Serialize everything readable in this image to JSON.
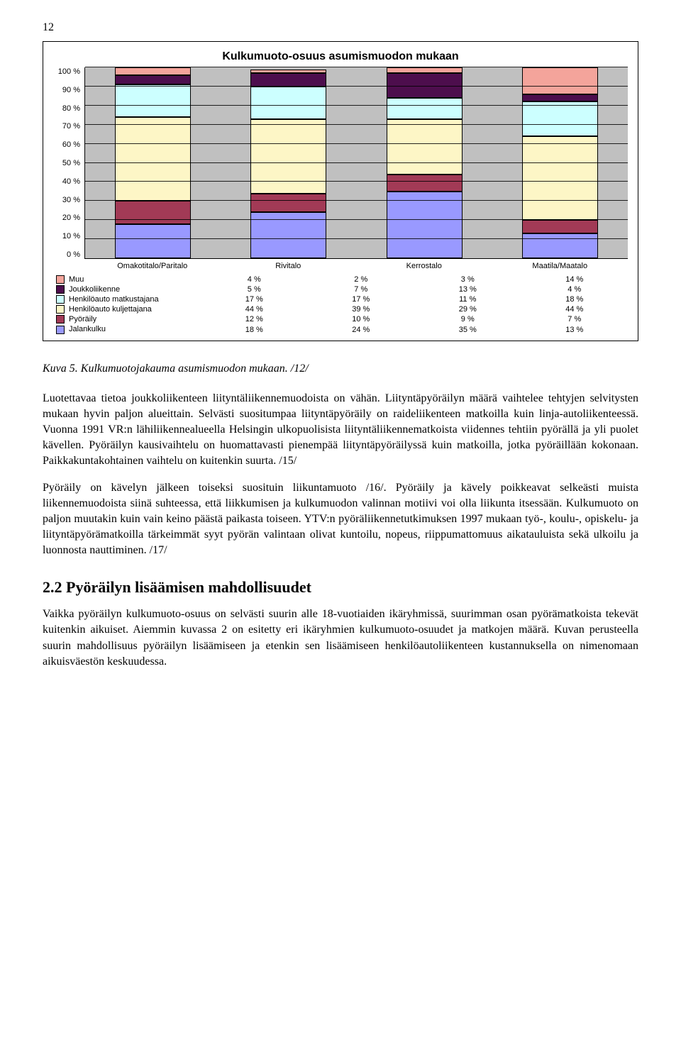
{
  "page_number": "12",
  "chart": {
    "type": "stacked-bar",
    "title": "Kulkumuoto-osuus asumismuodon mukaan",
    "background_color": "#c0c0c0",
    "grid_color": "#000000",
    "ylabel_suffix": " %",
    "yticks": [
      "100 %",
      "90 %",
      "80 %",
      "70 %",
      "60 %",
      "50 %",
      "40 %",
      "30 %",
      "20 %",
      "10 %",
      "0 %"
    ],
    "categories": [
      "Omakotitalo/Paritalo",
      "Rivitalo",
      "Kerrostalo",
      "Maatila/Maatalo"
    ],
    "series": [
      {
        "key": "Muu",
        "label": "Muu",
        "color": "#f4a49b",
        "values": [
          "4 %",
          "2 %",
          "3 %",
          "14 %"
        ],
        "pct": [
          4,
          2,
          3,
          14
        ]
      },
      {
        "key": "Joukkoliikenne",
        "label": "Joukkoliikenne",
        "color": "#4d0e4d",
        "values": [
          "5 %",
          "7 %",
          "13 %",
          "4 %"
        ],
        "pct": [
          5,
          7,
          13,
          4
        ]
      },
      {
        "key": "HenkiloautoMatkustajana",
        "label": "Henkilöauto matkustajana",
        "color": "#ccffff",
        "values": [
          "17 %",
          "17 %",
          "11 %",
          "18 %"
        ],
        "pct": [
          17,
          17,
          11,
          18
        ]
      },
      {
        "key": "HenkiloautoKuljettajana",
        "label": "Henkilöauto kuljettajana",
        "color": "#fdf6c6",
        "values": [
          "44 %",
          "39 %",
          "29 %",
          "44 %"
        ],
        "pct": [
          44,
          39,
          29,
          44
        ]
      },
      {
        "key": "Pyoraily",
        "label": "Pyöräily",
        "color": "#a23a56",
        "values": [
          "12 %",
          "10 %",
          "9 %",
          "7 %"
        ],
        "pct": [
          12,
          10,
          9,
          7
        ]
      },
      {
        "key": "Jalankulku",
        "label": "Jalankulku",
        "color": "#9999ff",
        "values": [
          "18 %",
          "24 %",
          "35 %",
          "13 %"
        ],
        "pct": [
          18,
          24,
          35,
          13
        ]
      }
    ]
  },
  "caption": "Kuva 5. Kulkumuotojakauma asumismuodon mukaan. /12/",
  "para1": "Luotettavaa tietoa joukkoliikenteen liityntäliikennemuodoista on vähän. Liityntäpyöräilyn määrä vaihtelee tehtyjen selvitysten mukaan hyvin paljon alueittain. Selvästi suositumpaa liityntäpyöräily on raideliikenteen matkoilla kuin linja-autoliikenteessä. Vuonna 1991 VR:n lähiliikennealueella Helsingin ulkopuolisista liityntäliikennematkoista viidennes tehtiin pyörällä ja yli puolet kävellen. Pyöräilyn kausivaihtelu on huomattavasti pienempää liityntäpyöräilyssä kuin matkoilla, jotka pyöräillään kokonaan. Paikkakuntakohtainen vaihtelu on kuitenkin suurta. /15/",
  "para2": "Pyöräily on kävelyn jälkeen toiseksi suosituin liikuntamuoto /16/. Pyöräily ja kävely poikkeavat selkeästi muista liikennemuodoista siinä suhteessa, että liikkumisen ja kulkumuodon valinnan motiivi voi olla liikunta itsessään. Kulkumuoto on paljon muutakin kuin vain keino päästä paikasta toiseen. YTV:n pyöräliikennetutkimuksen 1997 mukaan työ-, koulu-, opiskelu- ja liityntäpyörämatkoilla tärkeimmät syyt pyörän valintaan olivat kuntoilu, nopeus, riippumattomuus aikatauluista sekä ulkoilu ja luonnosta nauttiminen. /17/",
  "section_heading": "2.2 Pyöräilyn lisäämisen mahdollisuudet",
  "para3": "Vaikka pyöräilyn kulkumuoto-osuus on selvästi suurin alle 18-vuotiaiden ikäryhmissä, suurimman osan pyörämatkoista tekevät kuitenkin aikuiset. Aiemmin kuvassa 2 on esitetty eri ikäryhmien kulkumuoto-osuudet ja matkojen määrä. Kuvan perusteella suurin mahdollisuus pyöräilyn lisäämiseen ja etenkin sen lisäämiseen henkilöautoliikenteen kustannuksella on nimenomaan aikuisväestön keskuudessa."
}
